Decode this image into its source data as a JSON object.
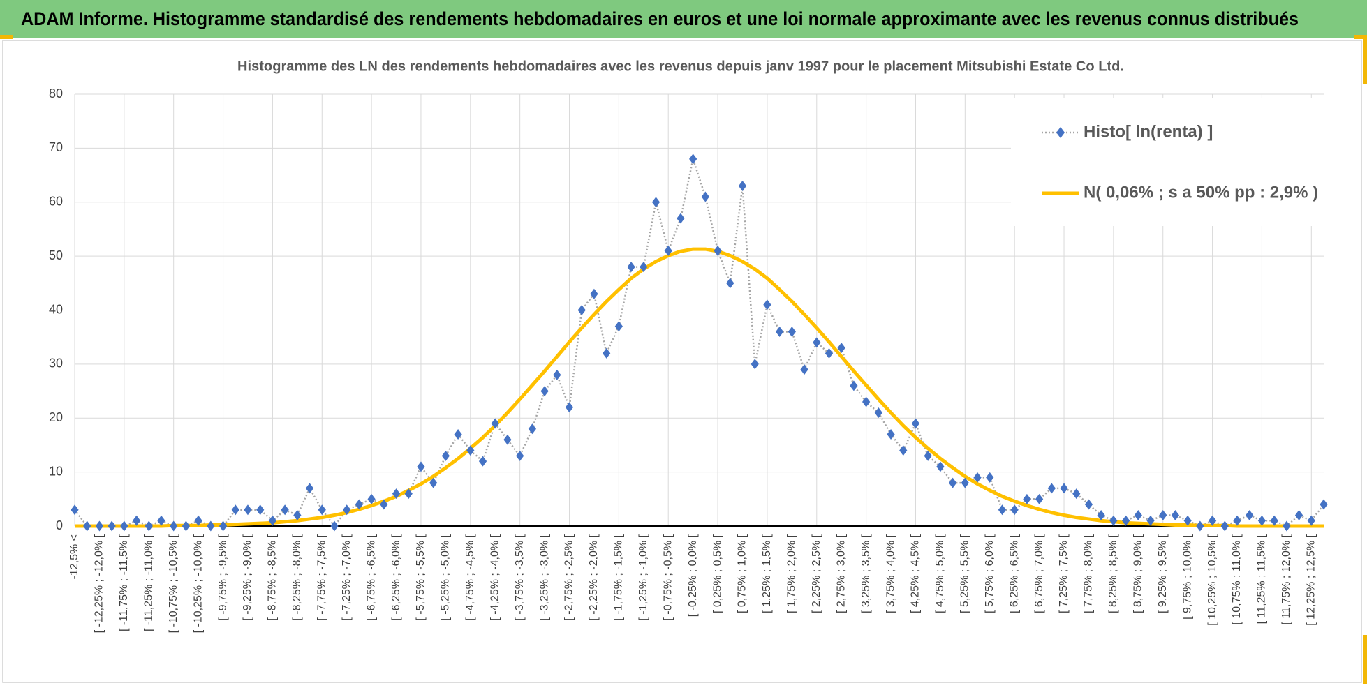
{
  "header": {
    "title": "ADAM Informe. Histogramme standardisé des rendements hebdomadaires en euros et une loi normale approximante avec les revenus connus distribués"
  },
  "chart_data": {
    "type": "line",
    "title": "Histogramme  des LN des rendements hebdomadaires avec les revenus depuis janv 1997 pour le placement Mitsubishi Estate Co Ltd.",
    "categories": [
      "-12,5% <",
      null,
      "[ -12,25% ; -12,0% [",
      null,
      "[ -11,75% ; -11,5% [",
      null,
      "[ -11,25% ; -11,0% [",
      null,
      "[ -10,75% ; -10,5% [",
      null,
      "[ -10,25% ; -10,0% [",
      null,
      "[ -9,75% ; -9,5% [",
      null,
      "[ -9,25% ; -9,0% [",
      null,
      "[ -8,75% ; -8,5% [",
      null,
      "[ -8,25% ; -8,0% [",
      null,
      "[ -7,75% ; -7,5% [",
      null,
      "[ -7,25% ; -7,0% [",
      null,
      "[ -6,75% ; -6,5% [",
      null,
      "[ -6,25% ; -6,0% [",
      null,
      "[ -5,75% ; -5,5% [",
      null,
      "[ -5,25% ; -5,0% [",
      null,
      "[ -4,75% ; -4,5% [",
      null,
      "[ -4,25% ; -4,0% [",
      null,
      "[ -3,75% ; -3,5% [",
      null,
      "[ -3,25% ; -3,0% [",
      null,
      "[ -2,75% ; -2,5% [",
      null,
      "[ -2,25% ; -2,0% [",
      null,
      "[ -1,75% ; -1,5% [",
      null,
      "[ -1,25% ; -1,0% [",
      null,
      "[ -0,75% ; -0,5% [",
      null,
      "[ -0,25% ; 0,0% [",
      null,
      "[ 0,25% ; 0,5% [",
      null,
      "[ 0,75% ; 1,0% [",
      null,
      "[ 1,25% ; 1,5% [",
      null,
      "[ 1,75% ; 2,0% [",
      null,
      "[ 2,25% ; 2,5% [",
      null,
      "[ 2,75% ; 3,0% [",
      null,
      "[ 3,25% ; 3,5% [",
      null,
      "[ 3,75% ; 4,0% [",
      null,
      "[ 4,25% ; 4,5% [",
      null,
      "[ 4,75% ; 5,0% [",
      null,
      "[ 5,25% ; 5,5% [",
      null,
      "[ 5,75% ; 6,0% [",
      null,
      "[ 6,25% ; 6,5% [",
      null,
      "[ 6,75% ; 7,0% [",
      null,
      "[ 7,25% ; 7,5% [",
      null,
      "[ 7,75% ; 8,0% [",
      null,
      "[ 8,25% ; 8,5% [",
      null,
      "[ 8,75% ; 9,0% [",
      null,
      "[ 9,25% ; 9,5% [",
      null,
      "[ 9,75% ; 10,0% [",
      null,
      "[ 10,25% ; 10,5% [",
      null,
      "[ 10,75% ; 11,0% [",
      null,
      "[ 11,25% ; 11,5% [",
      null,
      "[ 11,75% ; 12,0% [",
      null,
      "[ 12,25% ; 12,5% [",
      null
    ],
    "series": [
      {
        "name": "Histo[ ln(renta) ]",
        "color": "#4472c4",
        "line_color": "#a5a5a5",
        "line_style": "dotted",
        "marker": "diamond",
        "values": [
          3,
          0,
          0,
          0,
          0,
          1,
          0,
          1,
          0,
          0,
          1,
          0,
          0,
          3,
          3,
          3,
          1,
          3,
          2,
          7,
          3,
          0,
          3,
          4,
          5,
          4,
          6,
          6,
          11,
          8,
          13,
          17,
          14,
          12,
          19,
          16,
          13,
          18,
          25,
          28,
          22,
          40,
          43,
          32,
          37,
          48,
          48,
          60,
          51,
          57,
          68,
          61,
          51,
          45,
          63,
          30,
          41,
          36,
          36,
          29,
          34,
          32,
          33,
          26,
          23,
          21,
          17,
          14,
          19,
          13,
          11,
          8,
          8,
          9,
          9,
          3,
          3,
          5,
          5,
          7,
          7,
          6,
          4,
          2,
          1,
          1,
          2,
          1,
          2,
          2,
          1,
          0,
          1,
          0,
          1,
          2,
          1,
          1,
          0,
          2,
          1,
          4
        ]
      },
      {
        "name": "N( 0,06% ; s a 50% pp : 2,9% )",
        "color": "#ffc000",
        "line_style": "solid",
        "marker": "none",
        "values": [
          0,
          0,
          0,
          0,
          0,
          0,
          0,
          0,
          0.1,
          0.1,
          0.1,
          0.2,
          0.2,
          0.3,
          0.4,
          0.5,
          0.6,
          0.8,
          1.0,
          1.3,
          1.6,
          2.0,
          2.5,
          3.1,
          3.8,
          4.6,
          5.5,
          6.6,
          7.8,
          9.2,
          10.8,
          12.5,
          14.4,
          16.4,
          18.6,
          21.0,
          23.5,
          26.1,
          28.7,
          31.4,
          34.1,
          36.7,
          39.2,
          41.6,
          43.8,
          45.9,
          47.6,
          49.0,
          50.1,
          50.9,
          51.3,
          51.3,
          50.9,
          50.1,
          49.0,
          47.6,
          45.9,
          43.8,
          41.6,
          39.2,
          36.7,
          34.1,
          31.4,
          28.7,
          26.1,
          23.5,
          21.0,
          18.6,
          16.4,
          14.4,
          12.5,
          10.8,
          9.2,
          7.8,
          6.6,
          5.5,
          4.6,
          3.8,
          3.1,
          2.5,
          2.0,
          1.6,
          1.3,
          1.0,
          0.8,
          0.6,
          0.5,
          0.4,
          0.3,
          0.2,
          0.2,
          0.1,
          0.1,
          0.1,
          0,
          0,
          0,
          0,
          0,
          0,
          0,
          0
        ]
      }
    ],
    "ylim": [
      0,
      80
    ],
    "yticks": [
      0,
      10,
      20,
      30,
      40,
      50,
      60,
      70,
      80
    ],
    "grid": true,
    "legend": "top-right"
  }
}
